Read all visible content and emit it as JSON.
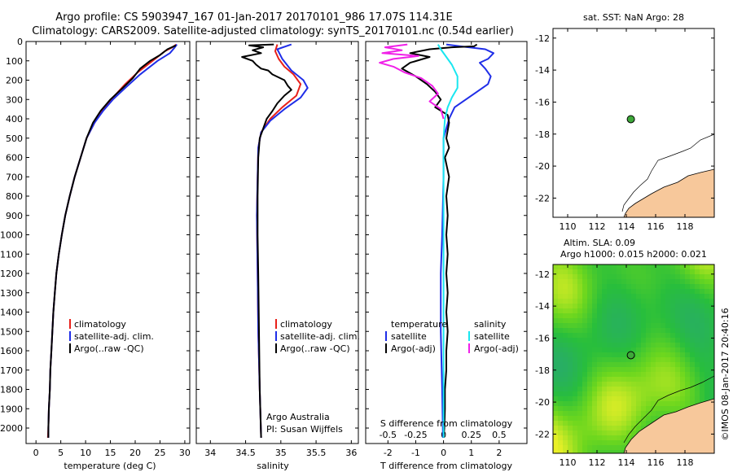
{
  "header": {
    "title_line1": "Argo profile: CS 5903947_167 01-Jan-2017 20170101_986 17.07S 114.31E",
    "title_line2": "Climatology: CARS2009. Satellite-adjusted climatology: synTS_20170101.nc (0.54d earlier)"
  },
  "colors": {
    "climatology": "#e8201a",
    "satellite": "#1f2ee8",
    "argo": "#000000",
    "salinity_sat": "#19e6f0",
    "salinity_argo": "#f020e8",
    "land": "#f7c89b",
    "float_marker": "#3ea83a"
  },
  "chart_data": [
    {
      "type": "line",
      "title": "",
      "xlabel": "temperature (deg C)",
      "ylabel": "",
      "xlim": [
        -2,
        31
      ],
      "ylim": [
        2080,
        0
      ],
      "xticks": [
        "0",
        "5",
        "10",
        "15",
        "20",
        "25",
        "30"
      ],
      "yticks": [
        "0",
        "100",
        "200",
        "300",
        "400",
        "500",
        "600",
        "700",
        "800",
        "900",
        "1000",
        "1100",
        "1200",
        "1300",
        "1400",
        "1500",
        "1600",
        "1700",
        "1800",
        "1900",
        "2000"
      ],
      "legend": [
        "climatology",
        "satellite-adj. clim.",
        "Argo(..raw -QC)"
      ],
      "series": [
        {
          "name": "climatology",
          "color": "#e8201a",
          "points": [
            [
              28.3,
              15
            ],
            [
              27.5,
              30
            ],
            [
              26.0,
              50
            ],
            [
              23.5,
              100
            ],
            [
              20.5,
              160
            ],
            [
              18.0,
              220
            ],
            [
              15.5,
              290
            ],
            [
              13.5,
              350
            ],
            [
              11.8,
              420
            ],
            [
              10.2,
              500
            ],
            [
              9.0,
              600
            ],
            [
              7.8,
              700
            ],
            [
              6.8,
              800
            ],
            [
              5.9,
              900
            ],
            [
              5.2,
              1000
            ],
            [
              4.6,
              1100
            ],
            [
              4.1,
              1200
            ],
            [
              3.8,
              1300
            ],
            [
              3.5,
              1400
            ],
            [
              3.3,
              1500
            ],
            [
              3.1,
              1600
            ],
            [
              2.9,
              1700
            ],
            [
              2.8,
              1800
            ],
            [
              2.6,
              1900
            ],
            [
              2.5,
              2000
            ],
            [
              2.4,
              2050
            ]
          ]
        },
        {
          "name": "satellite-adj. clim.",
          "color": "#1f2ee8",
          "points": [
            [
              28.4,
              15
            ],
            [
              28.0,
              30
            ],
            [
              27.0,
              60
            ],
            [
              24.5,
              100
            ],
            [
              21.0,
              170
            ],
            [
              18.0,
              240
            ],
            [
              15.5,
              300
            ],
            [
              13.5,
              360
            ],
            [
              11.8,
              420
            ],
            [
              10.2,
              500
            ],
            [
              9.0,
              600
            ],
            [
              7.8,
              700
            ],
            [
              6.8,
              800
            ],
            [
              5.9,
              900
            ],
            [
              5.2,
              1000
            ],
            [
              4.6,
              1100
            ],
            [
              4.1,
              1200
            ],
            [
              3.8,
              1300
            ],
            [
              3.5,
              1400
            ],
            [
              3.3,
              1500
            ],
            [
              3.1,
              1600
            ],
            [
              2.9,
              1700
            ],
            [
              2.8,
              1800
            ],
            [
              2.6,
              1900
            ],
            [
              2.5,
              2000
            ],
            [
              2.5,
              2050
            ]
          ]
        },
        {
          "name": "Argo(..raw -QC)",
          "color": "#000000",
          "points": [
            [
              28.2,
              20
            ],
            [
              26.5,
              40
            ],
            [
              25.0,
              70
            ],
            [
              23.0,
              100
            ],
            [
              21.0,
              140
            ],
            [
              19.5,
              190
            ],
            [
              17.5,
              240
            ],
            [
              15.0,
              300
            ],
            [
              13.0,
              360
            ],
            [
              11.5,
              420
            ],
            [
              10.2,
              500
            ],
            [
              9.0,
              600
            ],
            [
              7.8,
              700
            ],
            [
              6.8,
              800
            ],
            [
              5.9,
              900
            ],
            [
              5.2,
              1000
            ],
            [
              4.6,
              1100
            ],
            [
              4.1,
              1200
            ],
            [
              3.8,
              1300
            ],
            [
              3.5,
              1400
            ],
            [
              3.3,
              1500
            ],
            [
              3.1,
              1600
            ],
            [
              2.9,
              1700
            ],
            [
              2.8,
              1800
            ],
            [
              2.6,
              1900
            ],
            [
              2.5,
              2000
            ],
            [
              2.5,
              2050
            ]
          ]
        }
      ]
    },
    {
      "type": "line",
      "title": "",
      "xlabel": "salinity",
      "xlim": [
        33.8,
        36.1
      ],
      "ylim": [
        2080,
        0
      ],
      "xticks": [
        "34",
        "34.5",
        "35",
        "35.5",
        "36"
      ],
      "legend": [
        "climatology",
        "satellite-adj. clim.",
        "Argo(..raw -QC)"
      ],
      "annotations": [
        "Argo Australia",
        "PI: Susan Wijffels"
      ],
      "series": [
        {
          "name": "climatology",
          "color": "#e8201a",
          "points": [
            [
              34.95,
              15
            ],
            [
              34.92,
              50
            ],
            [
              34.97,
              90
            ],
            [
              35.05,
              130
            ],
            [
              35.18,
              170
            ],
            [
              35.28,
              220
            ],
            [
              35.22,
              280
            ],
            [
              35.02,
              340
            ],
            [
              34.85,
              400
            ],
            [
              34.72,
              470
            ],
            [
              34.68,
              550
            ],
            [
              34.67,
              700
            ],
            [
              34.66,
              900
            ],
            [
              34.67,
              1200
            ],
            [
              34.68,
              1500
            ],
            [
              34.7,
              1800
            ],
            [
              34.72,
              2050
            ]
          ]
        },
        {
          "name": "satellite-adj. clim.",
          "color": "#1f2ee8",
          "points": [
            [
              35.15,
              15
            ],
            [
              34.95,
              40
            ],
            [
              35.02,
              90
            ],
            [
              35.15,
              150
            ],
            [
              35.32,
              200
            ],
            [
              35.38,
              240
            ],
            [
              35.28,
              290
            ],
            [
              35.05,
              350
            ],
            [
              34.85,
              410
            ],
            [
              34.72,
              470
            ],
            [
              34.68,
              550
            ],
            [
              34.67,
              700
            ],
            [
              34.66,
              900
            ],
            [
              34.67,
              1200
            ],
            [
              34.68,
              1500
            ],
            [
              34.7,
              1800
            ],
            [
              34.72,
              2050
            ]
          ]
        },
        {
          "name": "Argo(..raw -QC)",
          "color": "#000000",
          "points": [
            [
              34.9,
              15
            ],
            [
              34.55,
              20
            ],
            [
              34.75,
              30
            ],
            [
              34.6,
              45
            ],
            [
              34.72,
              60
            ],
            [
              34.45,
              80
            ],
            [
              34.6,
              100
            ],
            [
              34.65,
              120
            ],
            [
              34.72,
              140
            ],
            [
              34.82,
              150
            ],
            [
              34.88,
              170
            ],
            [
              35.05,
              200
            ],
            [
              35.1,
              230
            ],
            [
              35.15,
              250
            ],
            [
              35.05,
              280
            ],
            [
              34.95,
              320
            ],
            [
              34.88,
              360
            ],
            [
              34.8,
              400
            ],
            [
              34.75,
              450
            ],
            [
              34.7,
              500
            ],
            [
              34.68,
              600
            ],
            [
              34.67,
              800
            ],
            [
              34.67,
              1000
            ],
            [
              34.68,
              1200
            ],
            [
              34.69,
              1500
            ],
            [
              34.7,
              1800
            ],
            [
              34.72,
              2050
            ]
          ]
        }
      ]
    },
    {
      "type": "line",
      "title": "",
      "xlabel": "T difference from climatology",
      "xlabel_top": "S difference from climatology",
      "xlim": [
        -2.8,
        3.0
      ],
      "ylim": [
        2080,
        0
      ],
      "xticks": [
        "-2",
        "-1",
        "0",
        "1",
        "2"
      ],
      "xticks_top": [
        "-0.5",
        "-0.25",
        "0",
        "0.25",
        "0.5"
      ],
      "legend_headers": [
        "temperature",
        "salinity"
      ],
      "legend": [
        "satellite",
        "Argo(-adj)",
        "satellite",
        "Argo(-adj)"
      ],
      "series": [
        {
          "name": "temperature satellite",
          "color": "#1f2ee8",
          "points": [
            [
              0.1,
              15
            ],
            [
              0.6,
              25
            ],
            [
              1.5,
              40
            ],
            [
              1.8,
              60
            ],
            [
              1.6,
              90
            ],
            [
              1.3,
              110
            ],
            [
              1.5,
              140
            ],
            [
              1.7,
              180
            ],
            [
              1.6,
              220
            ],
            [
              1.2,
              260
            ],
            [
              0.8,
              300
            ],
            [
              0.4,
              340
            ],
            [
              0.2,
              400
            ],
            [
              0.1,
              450
            ],
            [
              0.0,
              500
            ],
            [
              0.0,
              700
            ],
            [
              -0.05,
              1000
            ],
            [
              -0.1,
              1200
            ],
            [
              -0.1,
              1500
            ],
            [
              -0.05,
              1800
            ],
            [
              -0.02,
              2050
            ]
          ]
        },
        {
          "name": "temperature Argo(-adj)",
          "color": "#000000",
          "points": [
            [
              1.2,
              15
            ],
            [
              1.1,
              25
            ],
            [
              0.3,
              30
            ],
            [
              -0.5,
              40
            ],
            [
              -1.2,
              60
            ],
            [
              -0.5,
              80
            ],
            [
              -1.2,
              110
            ],
            [
              -1.5,
              140
            ],
            [
              -1.0,
              180
            ],
            [
              -0.6,
              220
            ],
            [
              -0.3,
              260
            ],
            [
              -0.1,
              300
            ],
            [
              -0.3,
              340
            ],
            [
              0.15,
              380
            ],
            [
              0.2,
              420
            ],
            [
              0.15,
              460
            ],
            [
              0.1,
              500
            ],
            [
              0.2,
              550
            ],
            [
              0.05,
              600
            ],
            [
              0.2,
              700
            ],
            [
              0.1,
              800
            ],
            [
              0.15,
              900
            ],
            [
              0.1,
              1000
            ],
            [
              0.15,
              1100
            ],
            [
              0.1,
              1200
            ],
            [
              0.15,
              1300
            ],
            [
              0.1,
              1400
            ],
            [
              0.15,
              1500
            ],
            [
              0.1,
              1600
            ],
            [
              0.1,
              1700
            ],
            [
              0.05,
              1800
            ],
            [
              0.05,
              1900
            ],
            [
              0.03,
              2000
            ],
            [
              0.0,
              2050
            ]
          ]
        },
        {
          "name": "salinity satellite",
          "color": "#19e6f0",
          "points": [
            [
              -0.2,
              15
            ],
            [
              -0.1,
              40
            ],
            [
              0.1,
              80
            ],
            [
              0.3,
              120
            ],
            [
              0.5,
              180
            ],
            [
              0.5,
              240
            ],
            [
              0.3,
              290
            ],
            [
              0.15,
              340
            ],
            [
              0.05,
              400
            ],
            [
              0.0,
              500
            ],
            [
              0.0,
              800
            ],
            [
              0.0,
              1200
            ],
            [
              0.0,
              1600
            ],
            [
              0.0,
              2050
            ]
          ]
        },
        {
          "name": "salinity Argo(-adj)",
          "color": "#f020e8",
          "points": [
            [
              -1.3,
              15
            ],
            [
              -2.1,
              30
            ],
            [
              -1.5,
              45
            ],
            [
              -2.2,
              60
            ],
            [
              -0.9,
              75
            ],
            [
              -1.8,
              90
            ],
            [
              -2.3,
              110
            ],
            [
              -1.8,
              130
            ],
            [
              -1.4,
              160
            ],
            [
              -0.8,
              190
            ],
            [
              -0.4,
              230
            ],
            [
              -0.2,
              270
            ],
            [
              -0.5,
              310
            ],
            [
              -0.1,
              350
            ],
            [
              0.0,
              400
            ]
          ]
        }
      ]
    },
    {
      "type": "scatter",
      "title": "sat. SST: NaN Argo: 28",
      "xlim": [
        109,
        120
      ],
      "ylim": [
        -23.2,
        -11.4
      ],
      "xticks": [
        "110",
        "112",
        "114",
        "116",
        "118"
      ],
      "yticks": [
        "-12",
        "-14",
        "-16",
        "-18",
        "-20",
        "-22"
      ],
      "marker": {
        "lon": 114.31,
        "lat": -17.07
      }
    },
    {
      "type": "heatmap",
      "title_line1": "Altim. SLA: 0.09",
      "title_line2": "Argo h1000: 0.015 h2000: 0.021",
      "xlim": [
        109,
        120
      ],
      "ylim": [
        -23.2,
        -11.4
      ],
      "xticks": [
        "110",
        "112",
        "114",
        "116",
        "118"
      ],
      "yticks": [
        "-12",
        "-14",
        "-16",
        "-18",
        "-20",
        "-22"
      ],
      "marker": {
        "lon": 114.31,
        "lat": -17.07
      }
    }
  ],
  "footer": {
    "credit": "©IMOS 08-Jan-2017 20:40:16"
  }
}
